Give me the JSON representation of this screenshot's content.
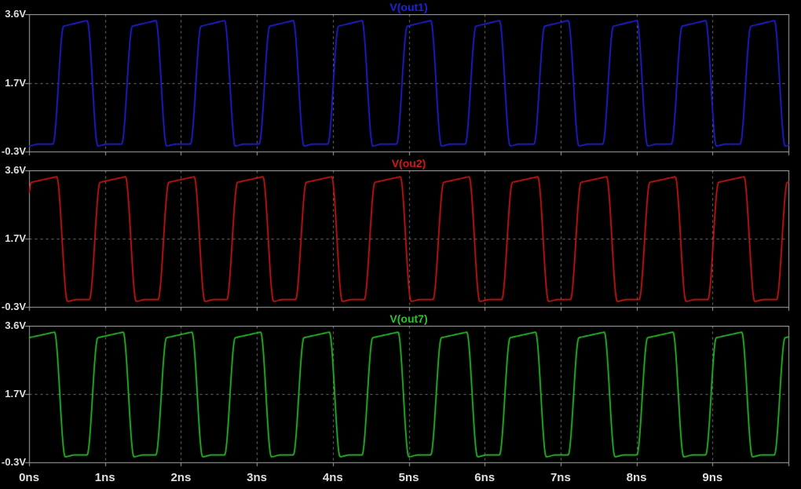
{
  "colors": {
    "background": "#000000",
    "grid": "#787878",
    "border": "#a8a8a8",
    "text": "#e0e0e0",
    "trace_blue": "#2121dd",
    "trace_red": "#d41717",
    "trace_green": "#2cc52c"
  },
  "x_axis": {
    "tick_labels": [
      "0ns",
      "1ns",
      "2ns",
      "3ns",
      "4ns",
      "5ns",
      "6ns",
      "7ns",
      "8ns",
      "9ns"
    ],
    "range_ns": [
      0,
      10
    ],
    "grid": "dashed vertical lines at each nanosecond"
  },
  "chart_data": [
    {
      "type": "line",
      "title": "V(out1)",
      "color": "#2121dd",
      "y_tick_labels": [
        "3.6V",
        "1.7V",
        "-0.3V"
      ],
      "y_range_v": [
        -0.3,
        3.6
      ],
      "x_range_ns": [
        0,
        10
      ],
      "legend_position": "title above pane",
      "waveform": {
        "shape": "rounded_square_oscillation",
        "period_ns": 0.905,
        "rise_mid_ns": 0.38,
        "fall_mid_ns": 0.83,
        "edge_ns": 0.14,
        "high_start_v": 3.27,
        "high_end_v": 3.43,
        "low_v": -0.08,
        "low_dip_v": -0.13,
        "settle_ns": 0.12,
        "state_at_t0": "low"
      }
    },
    {
      "type": "line",
      "title": "V(ou2)",
      "color": "#d41717",
      "y_tick_labels": [
        "3.6V",
        "1.7V",
        "-0.3V"
      ],
      "y_range_v": [
        -0.3,
        3.6
      ],
      "x_range_ns": [
        0,
        10
      ],
      "legend_position": "title above pane",
      "waveform": {
        "shape": "rounded_square_oscillation",
        "period_ns": 0.905,
        "rise_mid_ns": 0.86,
        "fall_mid_ns": 0.43,
        "edge_ns": 0.14,
        "high_start_v": 3.27,
        "high_end_v": 3.43,
        "low_v": -0.08,
        "low_dip_v": -0.13,
        "settle_ns": 0.12,
        "state_at_t0": "rising toward high"
      }
    },
    {
      "type": "line",
      "title": "V(out7)",
      "color": "#2cc52c",
      "y_tick_labels": [
        "3.6V",
        "1.7V",
        "-0.3V"
      ],
      "y_range_v": [
        -0.3,
        3.6
      ],
      "x_range_ns": [
        0,
        10
      ],
      "legend_position": "title above pane",
      "waveform": {
        "shape": "rounded_square_oscillation",
        "period_ns": 0.905,
        "rise_mid_ns": 0.83,
        "fall_mid_ns": 0.4,
        "edge_ns": 0.14,
        "high_start_v": 3.27,
        "high_end_v": 3.43,
        "low_v": -0.08,
        "low_dip_v": -0.13,
        "settle_ns": 0.12,
        "state_at_t0": "high"
      }
    }
  ]
}
